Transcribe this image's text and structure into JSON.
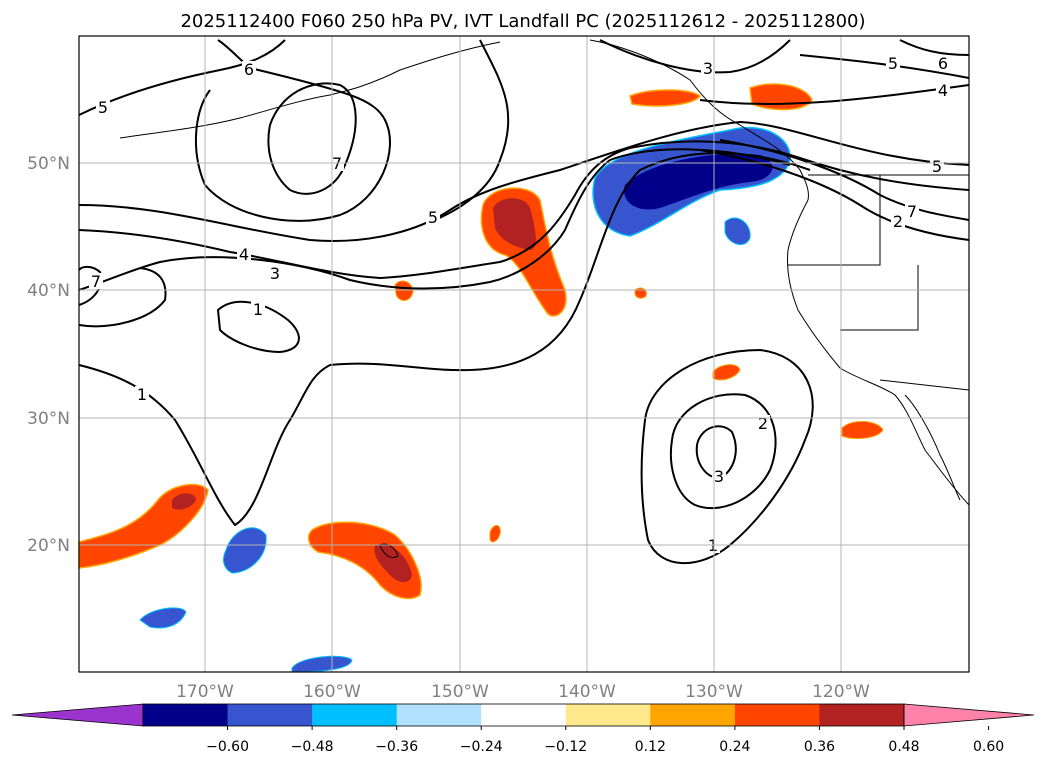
{
  "chart_data": {
    "type": "contour-map",
    "title": "2025112400 F060 250 hPa PV, IVT Landfall PC (2025112612 - 2025112800)",
    "x_ticks": [
      "170°W",
      "160°W",
      "150°W",
      "140°W",
      "130°W",
      "120°W"
    ],
    "y_ticks": [
      "50°N",
      "40°N",
      "30°N",
      "20°N"
    ],
    "lon_range": [
      -180,
      -110
    ],
    "lat_range": [
      10,
      60
    ],
    "pv_contour_labels": [
      "6",
      "5",
      "7",
      "5",
      "4",
      "3",
      "1",
      "1",
      "7",
      "3",
      "6",
      "5",
      "4",
      "5",
      "7",
      "2",
      "2",
      "3",
      "1"
    ],
    "colorbar": {
      "tick_labels": [
        "−0.60",
        "−0.48",
        "−0.36",
        "−0.24",
        "−0.12",
        "0.12",
        "0.24",
        "0.36",
        "0.48",
        "0.60"
      ],
      "colors": [
        "#9b34cf",
        "#00008b",
        "#3655cf",
        "#00bfff",
        "#b0e2ff",
        "#ffffff",
        "#ffe98c",
        "#ffa500",
        "#ff4500",
        "#b22222",
        "#ff82ab"
      ]
    }
  }
}
